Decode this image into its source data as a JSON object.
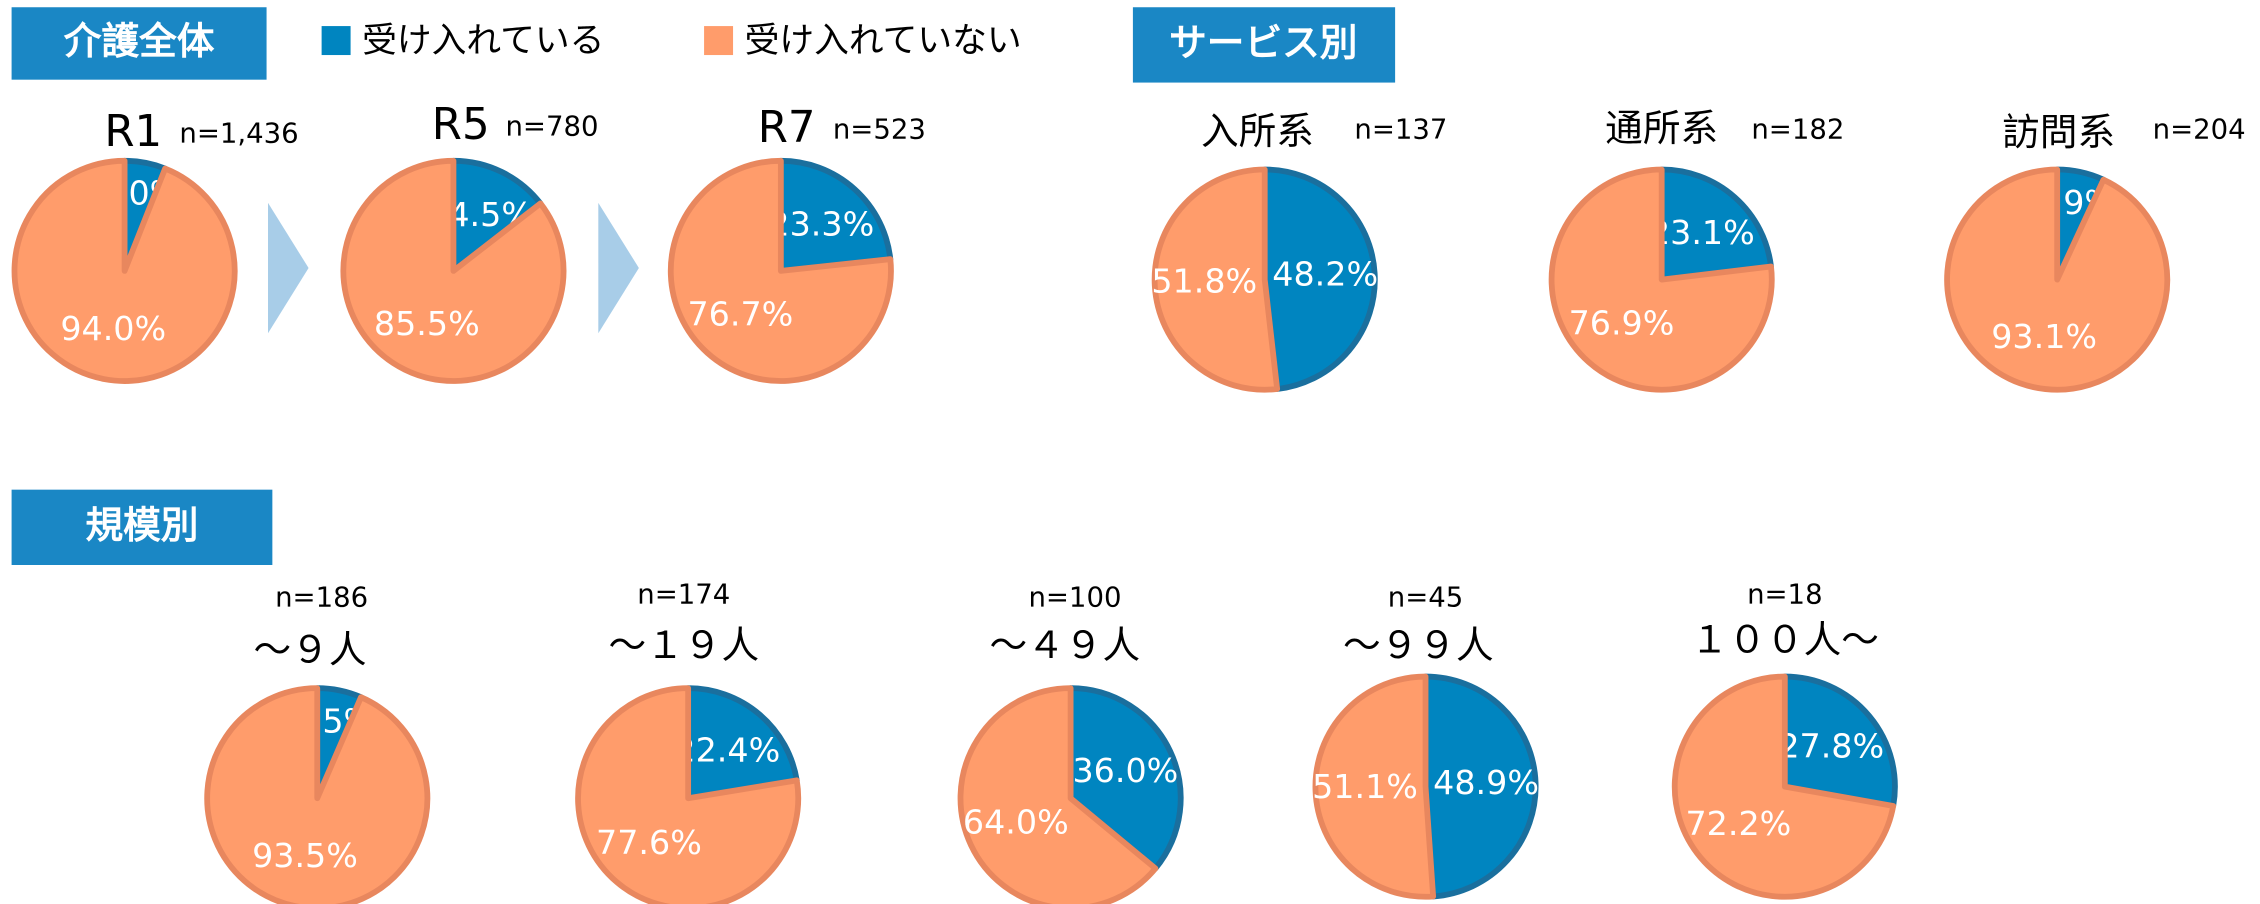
{
  "sections": [
    "介護全体",
    "サービス別",
    "規模別"
  ],
  "legend": [
    {
      "name": "受け入れている",
      "color": "#0085c0"
    },
    {
      "name": "受け入れていない",
      "color": "#ff9c6b"
    }
  ],
  "chart_data": [
    {
      "type": "pie",
      "title": "R1",
      "subtitle": "n=1,436",
      "values": [
        6.0,
        94.0
      ],
      "value_labels": [
        "6.0%",
        "94.0%"
      ]
    },
    {
      "type": "pie",
      "title": "R5",
      "subtitle": "n=780",
      "values": [
        14.5,
        85.5
      ],
      "value_labels": [
        "14.5%",
        "85.5%"
      ]
    },
    {
      "type": "pie",
      "title": "R7",
      "subtitle": "n=523",
      "values": [
        23.3,
        76.7
      ],
      "value_labels": [
        "23.3%",
        "76.7%"
      ]
    },
    {
      "type": "pie",
      "title": "入所系",
      "subtitle": "n=137",
      "values": [
        48.2,
        51.8
      ],
      "value_labels": [
        "48.2%",
        "51.8%"
      ]
    },
    {
      "type": "pie",
      "title": "通所系",
      "subtitle": "n=182",
      "values": [
        23.1,
        76.9
      ],
      "value_labels": [
        "23.1%",
        "76.9%"
      ]
    },
    {
      "type": "pie",
      "title": "訪問系",
      "subtitle": "n=204",
      "values": [
        6.9,
        93.1
      ],
      "value_labels": [
        "6.9%",
        "93.1%"
      ]
    },
    {
      "type": "pie",
      "title": "～９人",
      "subtitle": "n=186",
      "values": [
        6.5,
        93.5
      ],
      "value_labels": [
        "6.5%",
        "93.5%"
      ]
    },
    {
      "type": "pie",
      "title": "～１９人",
      "subtitle": "n=174",
      "values": [
        22.4,
        77.6
      ],
      "value_labels": [
        "22.4%",
        "77.6%"
      ]
    },
    {
      "type": "pie",
      "title": "～４９人",
      "subtitle": "n=100",
      "values": [
        36.0,
        64.0
      ],
      "value_labels": [
        "36.0%",
        "64.0%"
      ]
    },
    {
      "type": "pie",
      "title": "～９９人",
      "subtitle": "n=45",
      "values": [
        48.9,
        51.1
      ],
      "value_labels": [
        "48.9%",
        "51.1%"
      ]
    },
    {
      "type": "pie",
      "title": "１００人～",
      "subtitle": "n=18",
      "values": [
        27.8,
        72.2
      ],
      "value_labels": [
        "27.8%",
        "72.2%"
      ]
    }
  ]
}
